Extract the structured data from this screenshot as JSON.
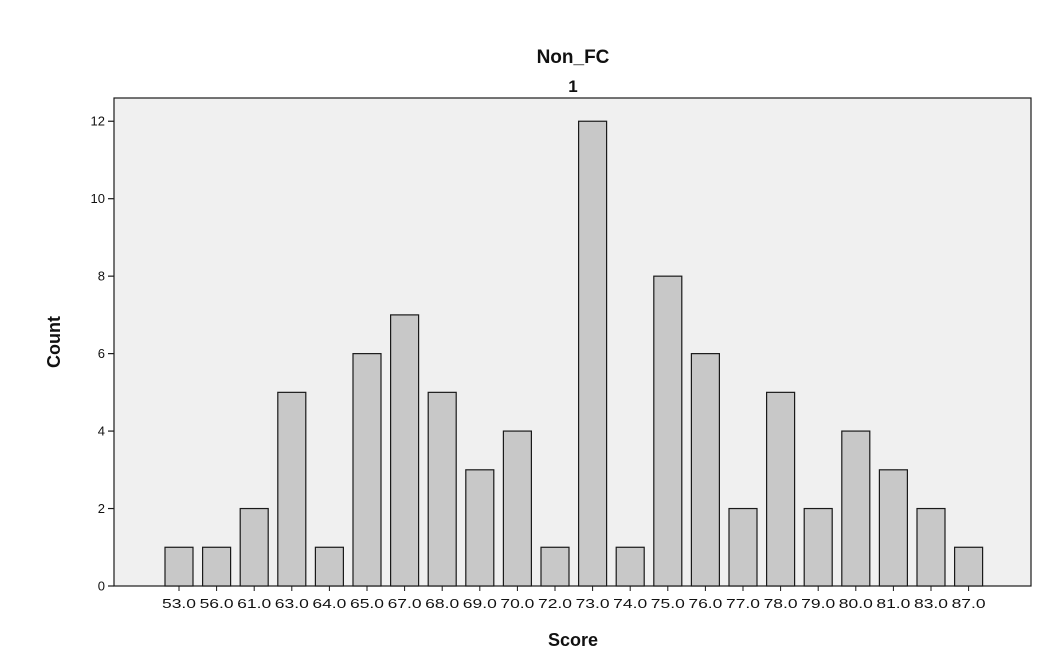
{
  "chart_data": {
    "type": "bar",
    "title": "Non_FC",
    "subtitle": "1",
    "xlabel": "Score",
    "ylabel": "Count",
    "categories": [
      "53.0",
      "56.0",
      "61.0",
      "63.0",
      "64.0",
      "65.0",
      "67.0",
      "68.0",
      "69.0",
      "70.0",
      "72.0",
      "73.0",
      "74.0",
      "75.0",
      "76.0",
      "77.0",
      "78.0",
      "79.0",
      "80.0",
      "81.0",
      "83.0",
      "87.0"
    ],
    "values": [
      1,
      1,
      2,
      5,
      1,
      6,
      7,
      5,
      3,
      4,
      1,
      12,
      1,
      8,
      6,
      2,
      5,
      2,
      4,
      3,
      2,
      1
    ],
    "ylim": [
      0,
      12.6
    ],
    "yticks": [
      0,
      2,
      4,
      6,
      8,
      10,
      12
    ],
    "grid": false,
    "legend": "none",
    "colors": {
      "bar_fill": "#c8c8c8",
      "bar_stroke": "#1a1a1a",
      "plot_bg": "#f0f0f0",
      "page_bg": "#ffffff"
    }
  }
}
